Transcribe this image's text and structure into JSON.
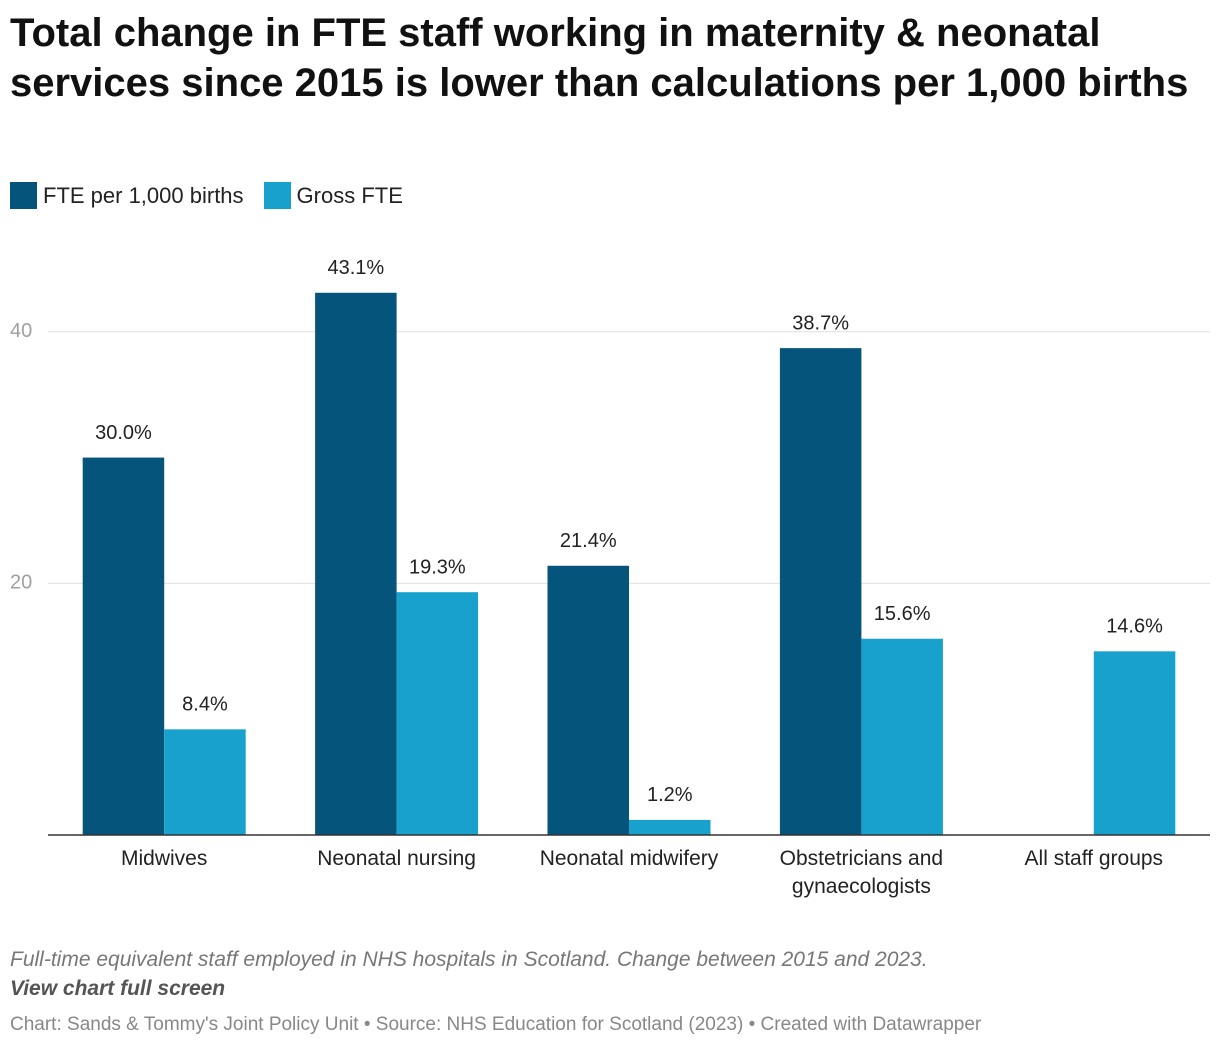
{
  "chart_data": {
    "type": "bar",
    "title": "Total change in FTE staff working in maternity & neonatal services since 2015 is lower than calculations per 1,000 births",
    "categories": [
      "Midwives",
      "Neonatal nursing",
      "Neonatal midwifery",
      "Obstetricians and gynaecologists",
      "All staff groups"
    ],
    "series": [
      {
        "name": "FTE per 1,000 births",
        "color": "#04547c",
        "values": [
          30.0,
          43.1,
          21.4,
          38.7,
          null
        ],
        "value_labels": [
          "30.0%",
          "43.1%",
          "21.4%",
          "38.7%",
          null
        ]
      },
      {
        "name": "Gross FTE",
        "color": "#18a1cd",
        "values": [
          8.4,
          19.3,
          1.2,
          15.6,
          14.6
        ],
        "value_labels": [
          "8.4%",
          "19.3%",
          "1.2%",
          "15.6%",
          "14.6%"
        ]
      }
    ],
    "ylim": [
      0,
      46.5
    ],
    "yticks": [
      20,
      40
    ],
    "grid": true,
    "notes": "Full-time equivalent staff employed in NHS hospitals in Scotland. Change between 2015 and 2023.",
    "link": "View chart full screen",
    "credits": "Chart: Sands & Tommy's Joint Policy Unit • Source: NHS Education for Scotland (2023) • Created with Datawrapper"
  }
}
